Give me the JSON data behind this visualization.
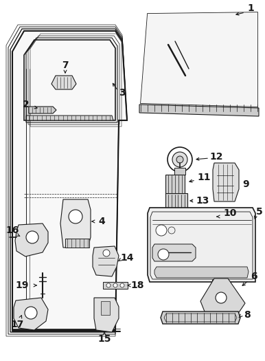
{
  "background_color": "#ffffff",
  "line_color": "#1a1a1a",
  "fig_width": 3.86,
  "fig_height": 5.25,
  "dpi": 100
}
